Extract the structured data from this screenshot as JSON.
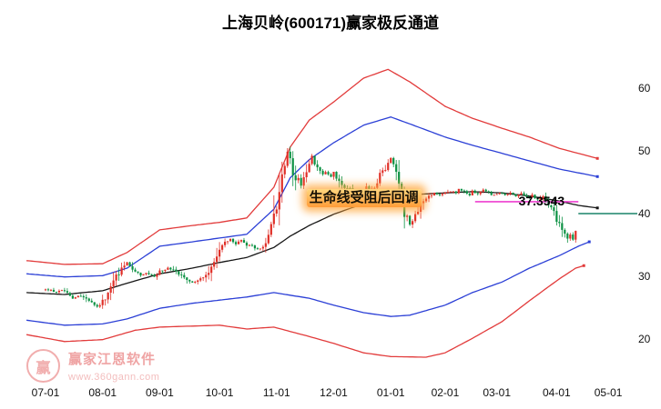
{
  "title": "上海贝岭(600171)赢家极反通道",
  "watermark": {
    "brand": "赢家江恩软件",
    "url": "www.360gann.com",
    "logo_char": "赢"
  },
  "chart_data": {
    "type": "candlestick",
    "title": "上海贝岭(600171)赢家极反通道",
    "grid": false,
    "legend": "none",
    "y_axis_side": "right",
    "y_ticks": [
      60,
      50,
      40,
      30,
      20
    ],
    "ylim": [
      14,
      67
    ],
    "x_ticks": [
      {
        "label": "07-01",
        "day": 0
      },
      {
        "label": "08-01",
        "day": 21
      },
      {
        "label": "09-01",
        "day": 42
      },
      {
        "label": "10-01",
        "day": 64
      },
      {
        "label": "11-01",
        "day": 85
      },
      {
        "label": "12-01",
        "day": 106
      },
      {
        "label": "01-01",
        "day": 127
      },
      {
        "label": "02-01",
        "day": 147
      },
      {
        "label": "03-01",
        "day": 166
      },
      {
        "label": "04-01",
        "day": 188
      },
      {
        "label": "05-01",
        "day": 207
      }
    ],
    "days": 196,
    "annotation": {
      "text": "生命线受阻后回调",
      "day": 96,
      "value": 42.3
    },
    "price_label": {
      "text": "37.3543",
      "day": 174,
      "value": 41.9
    },
    "trend_segment": {
      "color": "#ee3fd0",
      "from_day": 158,
      "to_day": 196,
      "value": 41.9
    },
    "price_line": {
      "value": 40.0,
      "from_day": 196,
      "to_x": 700,
      "color": "#1a8468"
    },
    "colors": {
      "up": "#e03028",
      "down": "#0c9143",
      "background": "#ffffff"
    },
    "close_keypoints": [
      [
        0,
        28.0
      ],
      [
        4,
        27.5
      ],
      [
        7,
        27.8
      ],
      [
        10,
        26.6
      ],
      [
        13,
        26.9
      ],
      [
        17,
        25.8
      ],
      [
        19,
        25.2
      ],
      [
        22,
        26.3
      ],
      [
        24,
        28.0
      ],
      [
        26,
        29.9
      ],
      [
        28,
        31.0
      ],
      [
        30,
        32.2
      ],
      [
        32,
        31.2
      ],
      [
        35,
        30.1
      ],
      [
        37,
        30.6
      ],
      [
        40,
        29.9
      ],
      [
        42,
        30.7
      ],
      [
        45,
        31.4
      ],
      [
        47,
        30.9
      ],
      [
        50,
        30.1
      ],
      [
        52,
        29.4
      ],
      [
        54,
        29.0
      ],
      [
        57,
        29.7
      ],
      [
        60,
        30.2
      ],
      [
        61,
        31.2
      ],
      [
        63,
        33.5
      ],
      [
        65,
        34.9
      ],
      [
        66,
        35.5
      ],
      [
        68,
        35.9
      ],
      [
        70,
        35.2
      ],
      [
        72,
        35.7
      ],
      [
        74,
        34.8
      ],
      [
        76,
        34.9
      ],
      [
        78,
        34.3
      ],
      [
        80,
        34.6
      ],
      [
        81,
        35.2
      ],
      [
        82,
        36.7
      ],
      [
        84,
        39.3
      ],
      [
        85,
        41.4
      ],
      [
        86,
        44.3
      ],
      [
        88,
        47.2
      ],
      [
        89,
        50.1
      ],
      [
        90,
        49.0
      ],
      [
        91,
        46.8
      ],
      [
        92,
        45.1
      ],
      [
        93,
        45.7
      ],
      [
        94,
        44.3
      ],
      [
        95,
        45.7
      ],
      [
        96,
        47.1
      ],
      [
        97,
        48.3
      ],
      [
        98,
        49.1
      ],
      [
        99,
        48.0
      ],
      [
        101,
        47.0
      ],
      [
        102,
        46.2
      ],
      [
        103,
        46.8
      ],
      [
        105,
        45.9
      ],
      [
        106,
        46.5
      ],
      [
        107,
        45.7
      ],
      [
        109,
        44.6
      ],
      [
        110,
        43.9
      ],
      [
        111,
        44.3
      ],
      [
        113,
        43.3
      ],
      [
        114,
        42.8
      ],
      [
        115,
        42.5
      ],
      [
        117,
        43.3
      ],
      [
        118,
        44.2
      ],
      [
        119,
        43.6
      ],
      [
        121,
        44.3
      ],
      [
        122,
        45.1
      ],
      [
        123,
        46.2
      ],
      [
        125,
        47.2
      ],
      [
        126,
        48.3
      ],
      [
        127,
        48.8
      ],
      [
        129,
        47.0
      ],
      [
        130,
        44.3
      ],
      [
        131,
        41.4
      ],
      [
        133,
        39.3
      ],
      [
        134,
        38.1
      ],
      [
        135,
        39.0
      ],
      [
        137,
        40.4
      ],
      [
        138,
        41.3
      ],
      [
        139,
        42.0
      ],
      [
        141,
        42.8
      ],
      [
        143,
        43.3
      ],
      [
        145,
        42.9
      ],
      [
        147,
        43.2
      ],
      [
        149,
        43.6
      ],
      [
        151,
        43.2
      ],
      [
        152,
        43.9
      ],
      [
        154,
        43.5
      ],
      [
        156,
        43.0
      ],
      [
        157,
        43.6
      ],
      [
        159,
        43.2
      ],
      [
        161,
        43.8
      ],
      [
        163,
        43.3
      ],
      [
        165,
        42.9
      ],
      [
        167,
        43.3
      ],
      [
        169,
        42.9
      ],
      [
        171,
        43.3
      ],
      [
        173,
        42.8
      ],
      [
        175,
        43.2
      ],
      [
        177,
        42.6
      ],
      [
        179,
        42.9
      ],
      [
        181,
        42.2
      ],
      [
        183,
        42.6
      ],
      [
        184,
        41.9
      ],
      [
        186,
        41.0
      ],
      [
        187,
        40.0
      ],
      [
        188,
        38.8
      ],
      [
        190,
        37.8
      ],
      [
        191,
        36.8
      ],
      [
        192,
        36.1
      ],
      [
        193,
        36.7
      ],
      [
        194,
        35.7
      ],
      [
        195,
        37.4
      ]
    ],
    "channels": [
      {
        "name": "upper-outer-red",
        "color": "#e23b3b",
        "points": [
          [
            -7,
            32.5
          ],
          [
            7,
            31.9
          ],
          [
            21,
            32.0
          ],
          [
            30,
            33.8
          ],
          [
            42,
            37.4
          ],
          [
            54,
            38.1
          ],
          [
            64,
            38.6
          ],
          [
            74,
            39.3
          ],
          [
            84,
            44.2
          ],
          [
            90,
            50.6
          ],
          [
            97,
            54.9
          ],
          [
            106,
            57.8
          ],
          [
            117,
            61.6
          ],
          [
            126,
            63.0
          ],
          [
            134,
            61.0
          ],
          [
            147,
            57.1
          ],
          [
            157,
            55.2
          ],
          [
            168,
            53.6
          ],
          [
            178,
            52.2
          ],
          [
            189,
            50.4
          ],
          [
            203,
            48.8
          ]
        ]
      },
      {
        "name": "upper-inner-blue",
        "color": "#2b3fd6",
        "points": [
          [
            -7,
            30.4
          ],
          [
            7,
            29.9
          ],
          [
            21,
            30.1
          ],
          [
            30,
            31.3
          ],
          [
            42,
            34.8
          ],
          [
            54,
            35.5
          ],
          [
            64,
            36.1
          ],
          [
            74,
            36.7
          ],
          [
            84,
            40.7
          ],
          [
            90,
            45.7
          ],
          [
            97,
            48.6
          ],
          [
            106,
            51.3
          ],
          [
            117,
            54.1
          ],
          [
            127,
            55.4
          ],
          [
            134,
            54.3
          ],
          [
            147,
            52.2
          ],
          [
            157,
            50.9
          ],
          [
            168,
            49.6
          ],
          [
            178,
            48.4
          ],
          [
            189,
            47.1
          ],
          [
            203,
            45.9
          ]
        ]
      },
      {
        "name": "lifeline-black",
        "color": "#161616",
        "points": [
          [
            -7,
            27.4
          ],
          [
            7,
            27.1
          ],
          [
            21,
            27.7
          ],
          [
            30,
            28.9
          ],
          [
            42,
            30.4
          ],
          [
            54,
            31.3
          ],
          [
            64,
            32.2
          ],
          [
            74,
            33.0
          ],
          [
            84,
            34.6
          ],
          [
            90,
            36.4
          ],
          [
            97,
            38.1
          ],
          [
            106,
            39.9
          ],
          [
            117,
            41.6
          ],
          [
            127,
            42.6
          ],
          [
            134,
            43.0
          ],
          [
            147,
            43.3
          ],
          [
            157,
            43.5
          ],
          [
            168,
            43.3
          ],
          [
            178,
            42.8
          ],
          [
            189,
            42.0
          ],
          [
            196,
            41.3
          ],
          [
            203,
            40.9
          ]
        ]
      },
      {
        "name": "lower-inner-blue",
        "color": "#2b3fd6",
        "points": [
          [
            -7,
            23.0
          ],
          [
            7,
            22.2
          ],
          [
            21,
            22.4
          ],
          [
            30,
            23.2
          ],
          [
            42,
            24.9
          ],
          [
            54,
            25.7
          ],
          [
            64,
            26.2
          ],
          [
            74,
            26.7
          ],
          [
            84,
            27.4
          ],
          [
            97,
            26.5
          ],
          [
            106,
            25.4
          ],
          [
            117,
            24.2
          ],
          [
            127,
            23.6
          ],
          [
            134,
            23.8
          ],
          [
            147,
            25.4
          ],
          [
            157,
            27.4
          ],
          [
            168,
            29.1
          ],
          [
            178,
            31.3
          ],
          [
            189,
            33.3
          ],
          [
            196,
            34.8
          ],
          [
            200,
            35.5
          ]
        ]
      },
      {
        "name": "lower-outer-red",
        "color": "#e23b3b",
        "points": [
          [
            -7,
            20.7
          ],
          [
            7,
            19.6
          ],
          [
            21,
            19.9
          ],
          [
            33,
            21.4
          ],
          [
            42,
            21.9
          ],
          [
            64,
            22.2
          ],
          [
            74,
            21.6
          ],
          [
            84,
            21.9
          ],
          [
            97,
            20.4
          ],
          [
            106,
            19.3
          ],
          [
            117,
            17.8
          ],
          [
            127,
            17.2
          ],
          [
            140,
            17.1
          ],
          [
            147,
            17.8
          ],
          [
            157,
            20.1
          ],
          [
            168,
            22.8
          ],
          [
            178,
            26.1
          ],
          [
            189,
            29.6
          ],
          [
            195,
            31.3
          ],
          [
            198,
            31.7
          ]
        ]
      }
    ]
  }
}
